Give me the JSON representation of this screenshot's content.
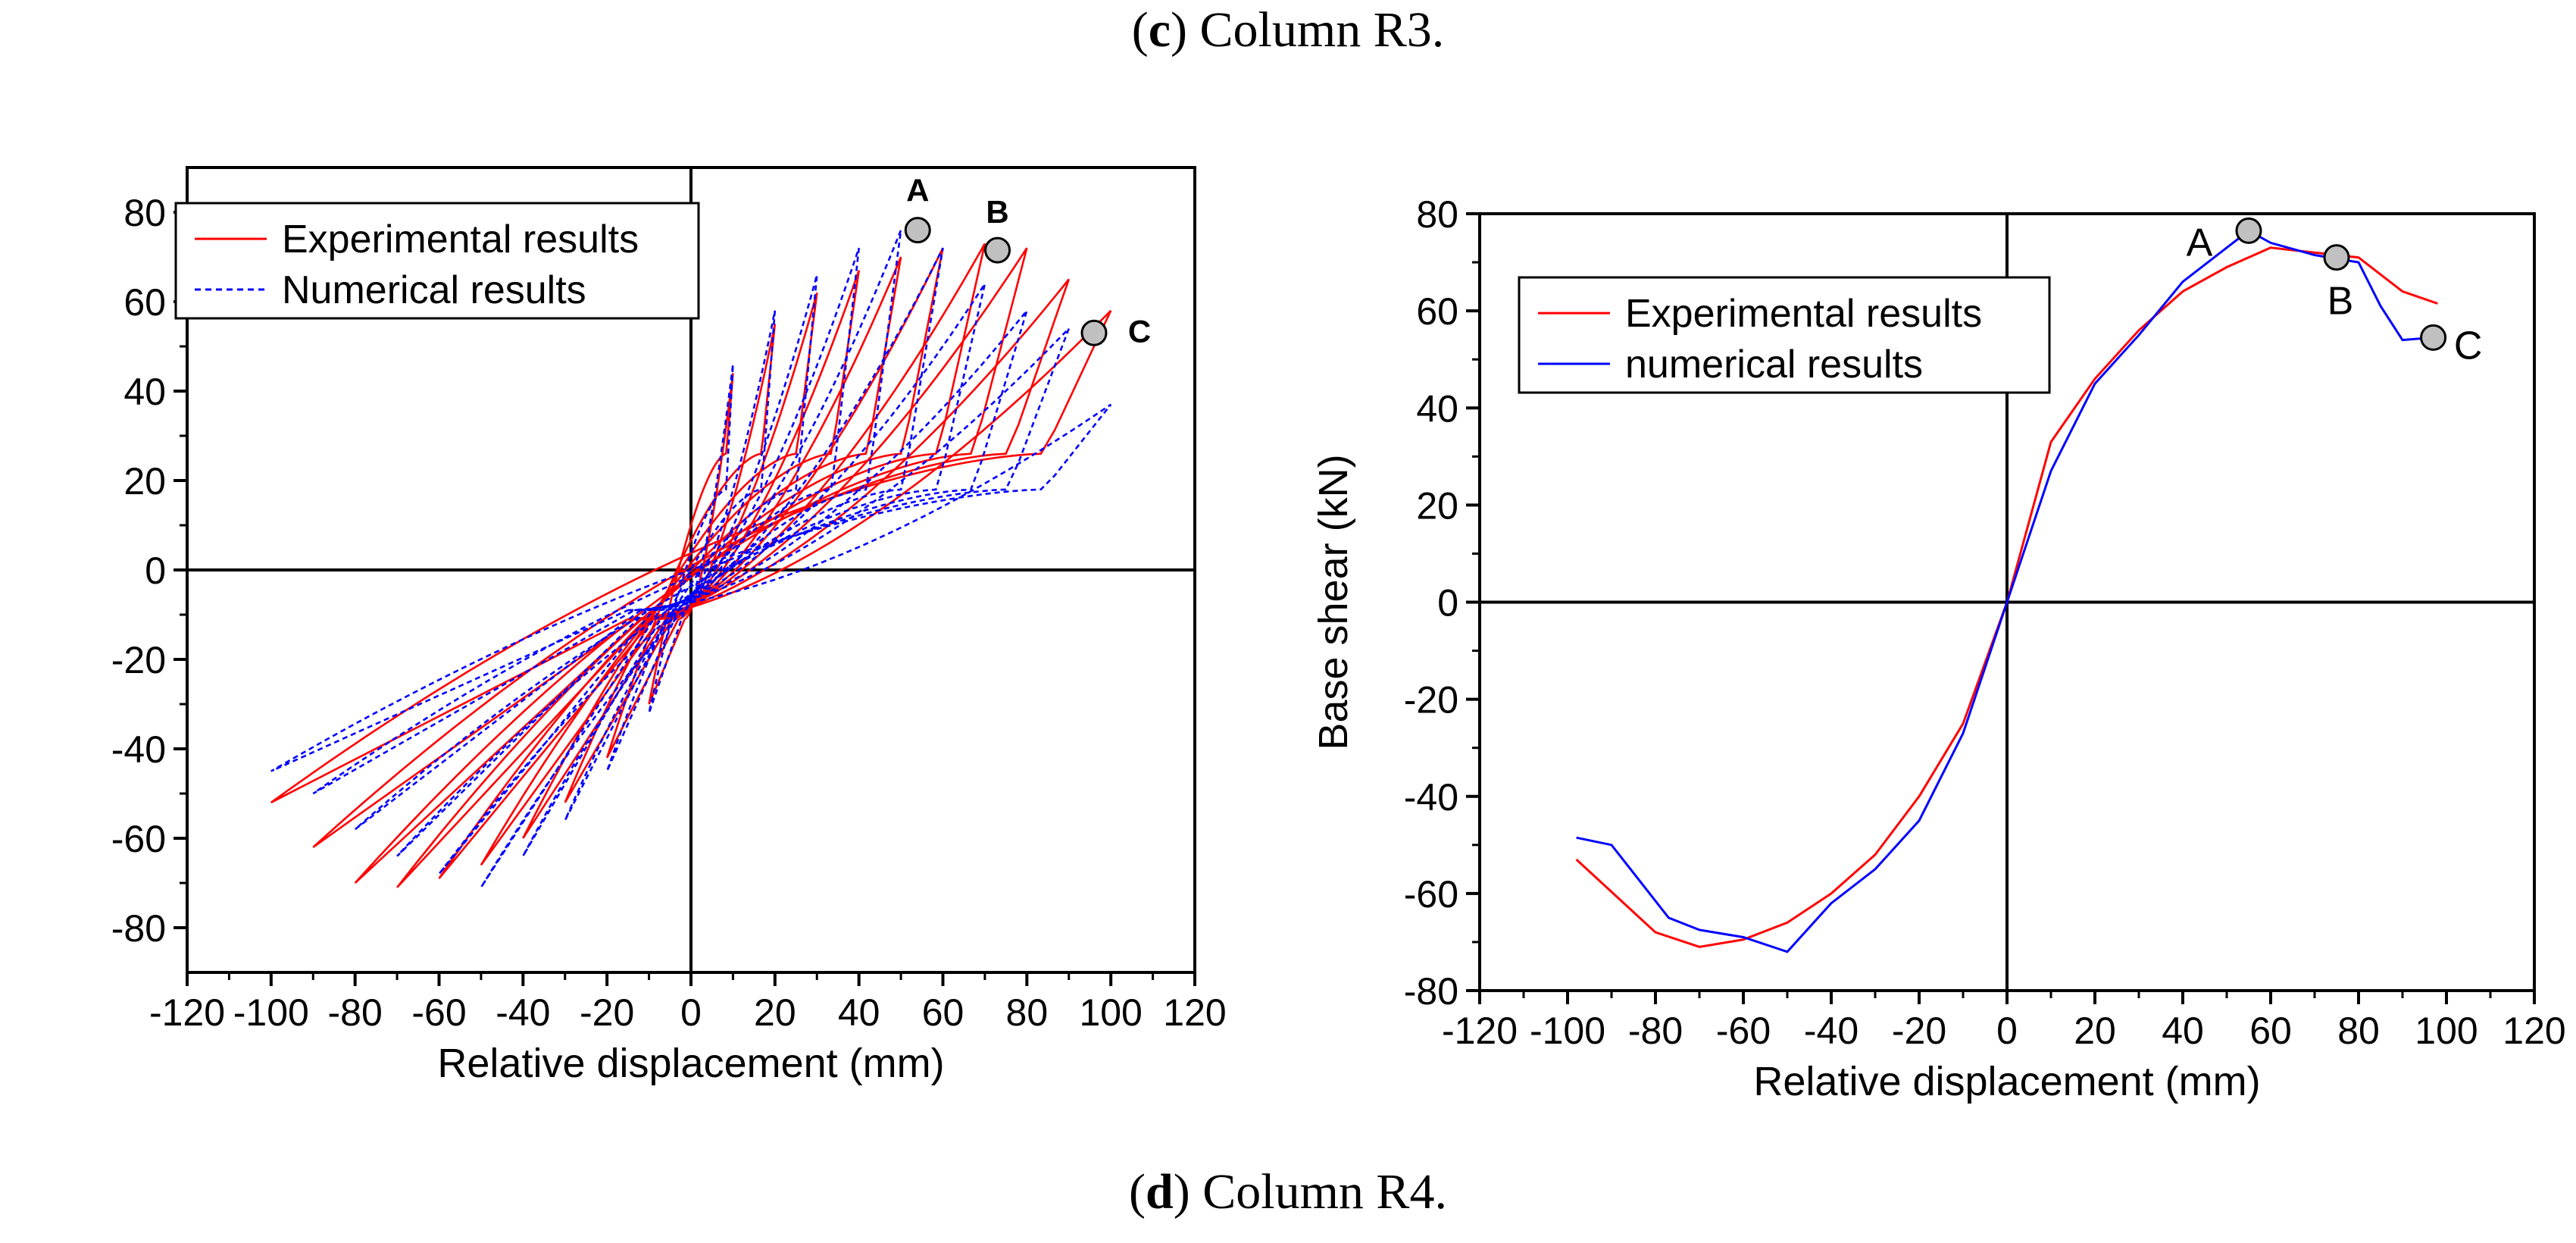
{
  "captions": {
    "top": {
      "prefix": "(",
      "letter": "c",
      "suffix": ") Column R3."
    },
    "bottom": {
      "prefix": "(",
      "letter": "d",
      "suffix": ") Column R4."
    }
  },
  "colors": {
    "experimental": "#ff0000",
    "numerical": "#0000ff",
    "marker_fill": "#c0c0c0",
    "axis": "#000000"
  },
  "chart_data": [
    {
      "type": "line",
      "title": "",
      "xlabel": "Relative displacement (mm)",
      "ylabel": "",
      "xlim": [
        -120,
        120
      ],
      "ylim": [
        -90,
        90
      ],
      "xticks": [
        -120,
        -100,
        -80,
        -60,
        -40,
        -20,
        0,
        20,
        40,
        60,
        80,
        100,
        120
      ],
      "yticks": [
        -80,
        -60,
        -40,
        -20,
        0,
        20,
        40,
        60,
        80
      ],
      "legend_position": "top-left",
      "series": [
        {
          "name": "Experimental results",
          "style": "solid",
          "color": "#ff0000",
          "description_hysteresis_amplitudes_mm": [
            10,
            20,
            30,
            40,
            50,
            60,
            70,
            80,
            90,
            100
          ],
          "peak_positive_kN": [
            44,
            55,
            62,
            67,
            70,
            72,
            73,
            72,
            65,
            58
          ],
          "peak_negative_kN": [
            -30,
            -42,
            -52,
            -60,
            -66,
            -69,
            -71,
            -70,
            -62,
            -52
          ]
        },
        {
          "name": "Numerical results",
          "style": "dashed",
          "color": "#0000ff",
          "description_hysteresis_amplitudes_mm": [
            10,
            20,
            30,
            40,
            50,
            60,
            70,
            80,
            90,
            100
          ],
          "peak_positive_kN": [
            46,
            58,
            66,
            72,
            76,
            72,
            64,
            58,
            54,
            37
          ],
          "peak_negative_kN": [
            -32,
            -45,
            -56,
            -64,
            -71,
            -68,
            -64,
            -58,
            -50,
            -45
          ]
        }
      ],
      "markers": [
        {
          "label": "A",
          "x": 54,
          "y": 76
        },
        {
          "label": "B",
          "x": 73,
          "y": 71.5
        },
        {
          "label": "C",
          "x": 96,
          "y": 53
        }
      ]
    },
    {
      "type": "line",
      "title": "",
      "xlabel": "Relative displacement (mm)",
      "ylabel": "Base shear (kN)",
      "xlim": [
        -120,
        120
      ],
      "ylim": [
        -80,
        80
      ],
      "xticks": [
        -120,
        -100,
        -80,
        -60,
        -40,
        -20,
        0,
        20,
        40,
        60,
        80,
        100,
        120
      ],
      "yticks": [
        -80,
        -60,
        -40,
        -20,
        0,
        20,
        40,
        60,
        80
      ],
      "legend_position": "top-left",
      "series": [
        {
          "name": "Experimental results",
          "color": "#ff0000",
          "x": [
            -98,
            -80,
            -70,
            -60,
            -50,
            -40,
            -30,
            -20,
            -10,
            0,
            10,
            20,
            30,
            40,
            50,
            60,
            70,
            80,
            90,
            98
          ],
          "y": [
            -53,
            -68,
            -71,
            -69.5,
            -66,
            -60,
            -52,
            -40,
            -25,
            0,
            33,
            46,
            56,
            64,
            69,
            73,
            72,
            71,
            64,
            61.5
          ]
        },
        {
          "name": "numerical results",
          "color": "#0000ff",
          "x": [
            -98,
            -90,
            -77,
            -70,
            -60,
            -50,
            -40,
            -30,
            -20,
            -10,
            0,
            10,
            20,
            30,
            40,
            50,
            55,
            60,
            70,
            80,
            85,
            90,
            97
          ],
          "y": [
            -48.5,
            -50,
            -65,
            -67.5,
            -69,
            -72,
            -62,
            -55,
            -45,
            -27,
            0,
            27,
            45,
            55,
            66,
            73,
            76.5,
            74,
            71.5,
            70,
            61,
            54,
            54.5
          ]
        }
      ],
      "markers": [
        {
          "label": "A",
          "x": 55,
          "y": 76.5
        },
        {
          "label": "B",
          "x": 75,
          "y": 71
        },
        {
          "label": "C",
          "x": 97,
          "y": 54.5
        }
      ]
    }
  ]
}
